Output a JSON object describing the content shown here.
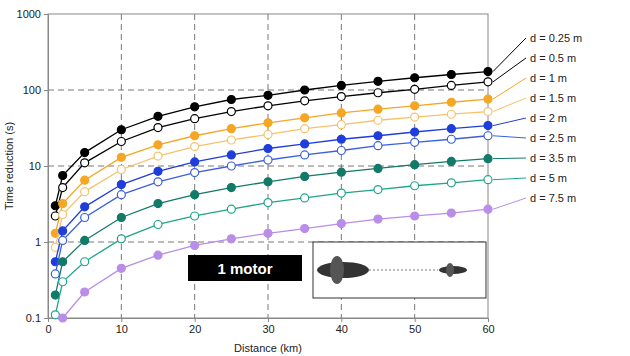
{
  "chart_data": {
    "type": "line",
    "x_label": "Distance (km)",
    "y_label": "Time reduction (s)",
    "annotation": "1 motor",
    "log": "y",
    "grid": true,
    "xlim": [
      0,
      60
    ],
    "xticks": [
      0,
      10,
      20,
      30,
      40,
      50,
      60
    ],
    "ylim": [
      0.1,
      1000
    ],
    "yticks": [
      0.1,
      1,
      10,
      100,
      1000
    ],
    "x": [
      1,
      2,
      5,
      10,
      15,
      20,
      25,
      30,
      35,
      40,
      45,
      50,
      55,
      60
    ],
    "series": [
      {
        "name": "d = 0.25 m",
        "color": "#000000",
        "marker": "circle",
        "values": [
          3,
          7.5,
          15,
          30,
          45,
          60,
          75,
          85,
          100,
          115,
          130,
          145,
          160,
          175
        ]
      },
      {
        "name": "d = 0.5 m",
        "color": "#000000",
        "marker": "open-circle",
        "values": [
          2.2,
          5.2,
          11,
          21,
          32,
          42,
          52,
          62,
          72,
          82,
          92,
          102,
          115,
          128
        ]
      },
      {
        "name": "d = 1 m",
        "color": "#f5a623",
        "marker": "circle",
        "values": [
          1.3,
          3.2,
          6.5,
          13,
          19,
          25,
          31,
          37,
          43,
          50,
          56,
          62,
          69,
          76
        ]
      },
      {
        "name": "d = 1.5 m",
        "color": "#f5c26b",
        "marker": "open-circle",
        "values": [
          0.85,
          2.3,
          4.6,
          9,
          13.5,
          18,
          22,
          26,
          31,
          35,
          40,
          44,
          48,
          52
        ]
      },
      {
        "name": "d = 2 m",
        "color": "#1f3ddb",
        "marker": "circle",
        "values": [
          0.55,
          1.4,
          2.9,
          5.7,
          8.5,
          11.3,
          14,
          17,
          19.5,
          22.5,
          25,
          28,
          31,
          34
        ]
      },
      {
        "name": "d = 2.5 m",
        "color": "#3a5fe0",
        "marker": "open-circle",
        "values": [
          0.38,
          1.05,
          2.1,
          4.2,
          6.2,
          8.2,
          10,
          12,
          14,
          16,
          18.5,
          20.5,
          22.5,
          25
        ]
      },
      {
        "name": "d = 3.5 m",
        "color": "#127a68",
        "marker": "circle",
        "values": [
          0.2,
          0.55,
          1.05,
          2.1,
          3.2,
          4.2,
          5.2,
          6.2,
          7.3,
          8.3,
          9.3,
          10.4,
          11.5,
          12.5
        ]
      },
      {
        "name": "d = 5 m",
        "color": "#1fa58b",
        "marker": "open-circle",
        "values": [
          0.11,
          0.3,
          0.55,
          1.1,
          1.7,
          2.2,
          2.7,
          3.3,
          3.8,
          4.4,
          4.9,
          5.5,
          6,
          6.6
        ]
      },
      {
        "name": "d = 7.5 m",
        "color": "#b98de8",
        "marker": "circle",
        "values": [
          null,
          0.1,
          0.22,
          0.45,
          0.67,
          0.9,
          1.1,
          1.3,
          1.5,
          1.75,
          2,
          2.2,
          2.4,
          2.7
        ]
      }
    ]
  }
}
